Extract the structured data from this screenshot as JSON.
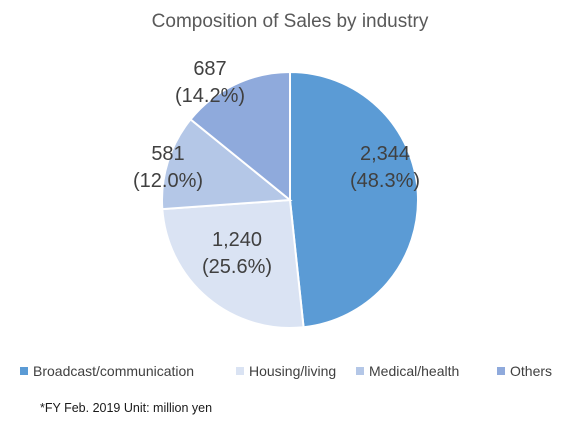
{
  "chart_data": {
    "type": "pie",
    "title": "Composition of Sales by industry",
    "categories": [
      "Broadcast/communication",
      "Housing/living",
      "Medical/health",
      "Others"
    ],
    "values": [
      2344,
      1240,
      581,
      687
    ],
    "value_labels": [
      "2,344",
      "1,240",
      "581",
      "687"
    ],
    "percent_labels": [
      "(48.3%)",
      "(25.6%)",
      "(12.0%)",
      "(14.2%)"
    ],
    "colors": [
      "#5b9bd5",
      "#dae3f3",
      "#b4c7e7",
      "#8faadc"
    ],
    "legend_position": "bottom",
    "note": "*FY Feb. 2019  Unit: million yen"
  }
}
